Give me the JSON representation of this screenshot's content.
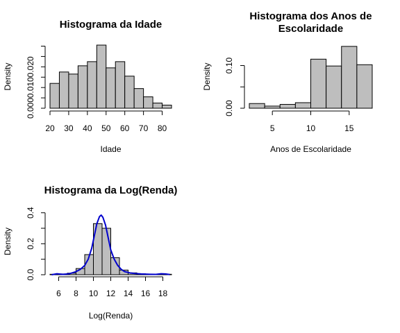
{
  "chart_data": [
    {
      "type": "bar",
      "title": "Histograma da Idade",
      "title_lines": [
        "Histograma da Idade"
      ],
      "xlabel": "Idade",
      "ylabel": "Density",
      "bin_edges": [
        20,
        25,
        30,
        35,
        40,
        45,
        50,
        55,
        60,
        65,
        70,
        75,
        80,
        85
      ],
      "values": [
        0.012,
        0.0175,
        0.0165,
        0.0205,
        0.0225,
        0.0305,
        0.0195,
        0.0225,
        0.0155,
        0.0095,
        0.0055,
        0.0025,
        0.0015
      ],
      "xlim": [
        20,
        85
      ],
      "ylim": [
        0,
        0.0305
      ],
      "xticks": [
        20,
        30,
        40,
        50,
        60,
        70,
        80
      ],
      "xtick_labels": [
        "20",
        "30",
        "40",
        "50",
        "60",
        "70",
        "80"
      ],
      "yticks": [
        0,
        0.005,
        0.01,
        0.015,
        0.02,
        0.025,
        0.03
      ],
      "ytick_labels": [
        "0.000",
        "",
        "0.010",
        "",
        "0.020",
        "",
        ""
      ],
      "bar_color": "#bebebe",
      "grid": false
    },
    {
      "type": "bar",
      "title": "Histograma dos Anos de Escolaridade",
      "title_lines": [
        "Histograma dos Anos de",
        "Escolaridade"
      ],
      "xlabel": "Anos de Escolaridade",
      "ylabel": "Density",
      "bin_edges": [
        2,
        4,
        6,
        8,
        10,
        12,
        14,
        16,
        18
      ],
      "values": [
        0.011,
        0.005,
        0.009,
        0.013,
        0.115,
        0.099,
        0.145,
        0.102
      ],
      "xlim": [
        2,
        18
      ],
      "ylim": [
        0,
        0.148
      ],
      "xticks": [
        5,
        10,
        15
      ],
      "xtick_labels": [
        "5",
        "10",
        "15"
      ],
      "yticks": [
        0,
        0.05,
        0.1
      ],
      "ytick_labels": [
        "0.00",
        "",
        "0.10"
      ],
      "bar_color": "#bebebe",
      "grid": false
    },
    {
      "type": "bar",
      "title": "Histograma da Log(Renda)",
      "title_lines": [
        "Histograma da Log(Renda)"
      ],
      "xlabel": "Log(Renda)",
      "ylabel": "Density",
      "bin_edges": [
        5,
        6,
        7,
        8,
        9,
        10,
        11,
        12,
        13,
        14,
        15,
        16,
        17,
        18,
        19
      ],
      "values": [
        0.003,
        0.005,
        0.01,
        0.04,
        0.13,
        0.33,
        0.3,
        0.11,
        0.03,
        0.012,
        0.006,
        0.003,
        0.002,
        0.003
      ],
      "xlim": [
        5,
        19
      ],
      "ylim": [
        0,
        0.43
      ],
      "xticks": [
        6,
        8,
        10,
        12,
        14,
        16,
        18
      ],
      "xtick_labels": [
        "6",
        "8",
        "10",
        "12",
        "14",
        "16",
        "18"
      ],
      "yticks": [
        0,
        0.1,
        0.2,
        0.3,
        0.4
      ],
      "ytick_labels": [
        "0.0",
        "",
        "0.2",
        "",
        "0.4"
      ],
      "bar_color": "#bebebe",
      "grid": false,
      "density_line": {
        "color": "#0000cd",
        "x": [
          5.2,
          5.8,
          6.5,
          7.2,
          8.0,
          8.5,
          9.0,
          9.4,
          9.8,
          10.1,
          10.4,
          10.7,
          10.9,
          11.1,
          11.4,
          11.7,
          12.0,
          12.4,
          12.8,
          13.2,
          13.6,
          14.2,
          14.8,
          15.5,
          16.5,
          17.2,
          17.8,
          18.3,
          18.8
        ],
        "y": [
          0.0,
          0.006,
          0.002,
          0.006,
          0.02,
          0.035,
          0.06,
          0.1,
          0.17,
          0.25,
          0.33,
          0.375,
          0.385,
          0.37,
          0.32,
          0.24,
          0.16,
          0.1,
          0.06,
          0.035,
          0.02,
          0.012,
          0.008,
          0.005,
          0.003,
          0.002,
          0.006,
          0.005,
          0.001
        ]
      }
    }
  ]
}
